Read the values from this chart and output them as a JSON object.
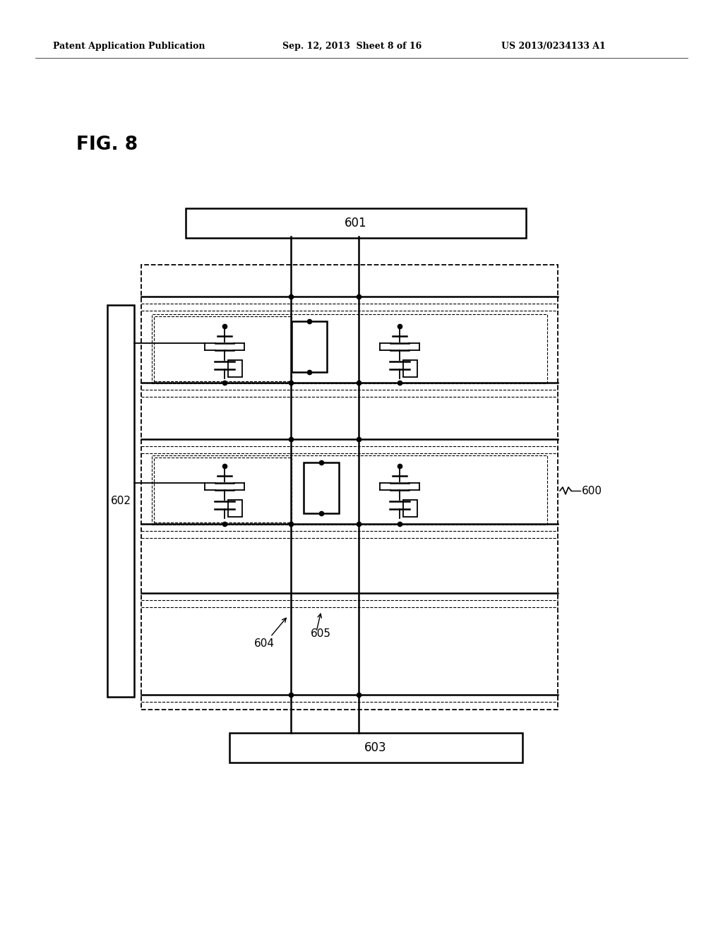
{
  "bg_color": "#ffffff",
  "header_left": "Patent Application Publication",
  "header_center": "Sep. 12, 2013  Sheet 8 of 16",
  "header_right": "US 2013/0234133 A1",
  "fig_label": "FIG. 8",
  "label_601": "601",
  "label_602": "602",
  "label_603": "603",
  "label_600": "600",
  "label_604": "604",
  "label_605": "605"
}
